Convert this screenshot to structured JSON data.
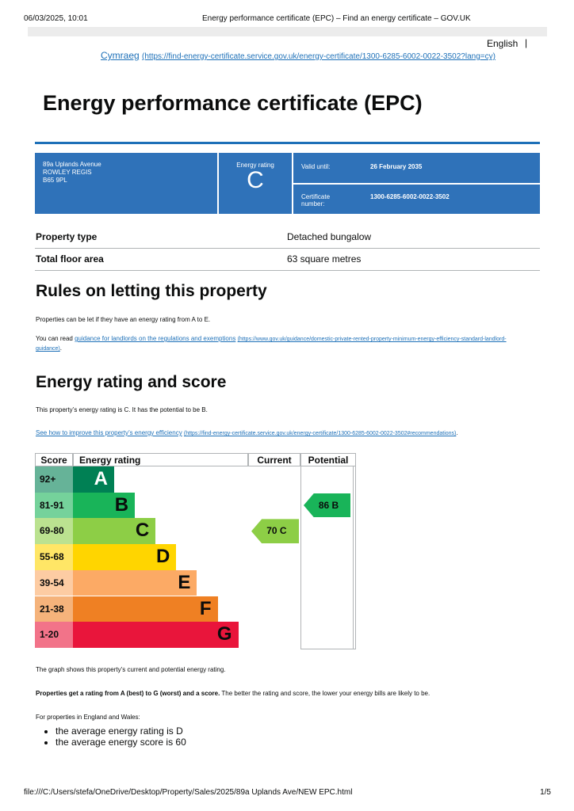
{
  "print_header": {
    "date": "06/03/2025, 10:01",
    "title": "Energy performance certificate (EPC) – Find an energy certificate – GOV.UK"
  },
  "language": {
    "current": "English",
    "separator": "|",
    "welsh": "Cymraeg",
    "welsh_url": "(https://find-energy-certificate.service.gov.uk/energy-certificate/1300-6285-6002-0022-3502?lang=cy)"
  },
  "title": "Energy performance certificate (EPC)",
  "summary": {
    "address": [
      "89a Uplands Avenue",
      "ROWLEY REGIS",
      "B65 9PL"
    ],
    "rating_label": "Energy rating",
    "rating": "C",
    "valid_label": "Valid until:",
    "valid_value": "26 February 2035",
    "cert_label": "Certificate number:",
    "cert_value": "1300-6285-6002-0022-3502"
  },
  "property": [
    [
      "Property type",
      "Detached bungalow"
    ],
    [
      "Total floor area",
      "63 square metres"
    ]
  ],
  "rules": {
    "heading": "Rules on letting this property",
    "p1": "Properties can be let if they have an energy rating from A to E.",
    "p2_before": "You can read ",
    "p2_link": "guidance for landlords on the regulations and exemptions",
    "p2_url": "(https://www.gov.uk/guidance/domestic-private-rented-property-minimum-energy-efficiency-standard-landlord-guidance)",
    "p2_after": "."
  },
  "rating": {
    "heading": "Energy rating and score",
    "p1": "This property’s energy rating is C. It has the potential to be B.",
    "link": "See how to improve this property’s energy efficiency",
    "url": "(https://find-energy-certificate.service.gov.uk/energy-certificate/1300-6285-6002-0022-3502#recommendations)",
    "after": "."
  },
  "table": {
    "headers": [
      "Score",
      "Energy rating",
      "Current",
      "Potential"
    ],
    "bands": [
      {
        "score": "92+",
        "letter": "A",
        "color": "#008054",
        "light": "#66b398"
      },
      {
        "score": "81-91",
        "letter": "B",
        "color": "#19b459",
        "light": "#75d29b"
      },
      {
        "score": "69-80",
        "letter": "C",
        "color": "#8dce46",
        "light": "#bbe290"
      },
      {
        "score": "55-68",
        "letter": "D",
        "color": "#ffd500",
        "light": "#ffe666"
      },
      {
        "score": "39-54",
        "letter": "E",
        "color": "#fcaa65",
        "light": "#fdcca3"
      },
      {
        "score": "21-38",
        "letter": "F",
        "color": "#ef8023",
        "light": "#f5b37b"
      },
      {
        "score": "1-20",
        "letter": "G",
        "color": "#e9153b",
        "light": "#f27389"
      }
    ],
    "current": {
      "label": "70 C",
      "color": "#8dce46"
    },
    "potential": {
      "label": "86 B",
      "color": "#19b459"
    }
  },
  "after_table": {
    "p1": "The graph shows this property’s current and potential energy rating.",
    "p2_bold": "Properties get a rating from A (best) to G (worst) and a score.",
    "p2_rest": " The better the rating and score, the lower your energy bills are likely to be.",
    "p3": "For properties in England and Wales:",
    "bullets": [
      "the average energy rating is D",
      "the average energy score is 60"
    ]
  },
  "footer": {
    "path": "file:///C:/Users/stefa/OneDrive/Desktop/Property/Sales/2025/89a Uplands Ave/NEW EPC.html",
    "page": "1/5"
  }
}
